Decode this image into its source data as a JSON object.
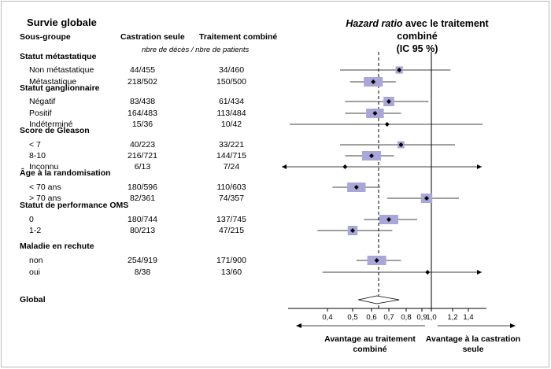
{
  "header": {
    "title": "Survie globale",
    "col_subgroup": "Sous-groupe",
    "col_castration": "Castration seule",
    "col_combined": "Traitement combiné",
    "col_note": "nbre de décès / nbre de patients",
    "hr_title_italic": "Hazard ratio",
    "hr_title_rest": " avec le traitement combiné",
    "hr_title_ci": "(IC 95 %)"
  },
  "chart_data": {
    "type": "forest",
    "reference_line": 1.0,
    "overall_line": 0.63,
    "x_ticks": [
      "0,4",
      "0,5",
      "0,6",
      "0,7",
      "0,8",
      "0,9",
      "1,0",
      "1,2",
      "1,4"
    ],
    "x_tick_values": [
      0.4,
      0.5,
      0.6,
      0.7,
      0.8,
      0.9,
      1.0,
      1.2,
      1.4
    ],
    "groups": [
      {
        "label": "Statut métastatique",
        "rows": [
          {
            "label": "Non métastatique",
            "castration": "44/455",
            "combined": "34/460",
            "hr": 0.76,
            "lo": 0.45,
            "hi": 1.18
          },
          {
            "label": "Métastatique",
            "castration": "218/502",
            "combined": "150/500",
            "hr": 0.61,
            "lo": 0.49,
            "hi": 0.74
          }
        ]
      },
      {
        "label": "Statut ganglionnaire",
        "rows": [
          {
            "label": "Négatif",
            "castration": "83/438",
            "combined": "61/434",
            "hr": 0.7,
            "lo": 0.47,
            "hi": 0.97
          },
          {
            "label": "Positif",
            "castration": "164/483",
            "combined": "113/484",
            "hr": 0.62,
            "lo": 0.47,
            "hi": 0.77
          },
          {
            "label": "Indéterminé",
            "castration": "15/36",
            "combined": "10/42",
            "hr": 0.69,
            "lo": 0.25,
            "hi": 1.58
          }
        ]
      },
      {
        "label": "Score de Gleason",
        "rows": [
          {
            "label": "< 7",
            "castration": "40/223",
            "combined": "33/221",
            "hr": 0.77,
            "lo": 0.45,
            "hi": 1.23
          },
          {
            "label": "8-10",
            "castration": "216/721",
            "combined": "144/715",
            "hr": 0.6,
            "lo": 0.47,
            "hi": 0.73
          },
          {
            "label": "Inconnu",
            "castration": "6/13",
            "combined": "7/24",
            "hr": 0.47,
            "lo": 0.05,
            "hi": 1.6,
            "lo_arrow": true,
            "hi_arrow": true
          }
        ]
      },
      {
        "label": "Âge à la randomisation",
        "rows": [
          {
            "label": "< 70 ans",
            "castration": "180/596",
            "combined": "110/603",
            "hr": 0.52,
            "lo": 0.42,
            "hi": 0.65
          },
          {
            "label": "> 70 ans",
            "castration": "82/361",
            "combined": "74/357",
            "hr": 0.95,
            "lo": 0.69,
            "hi": 1.28
          }
        ]
      },
      {
        "label": "Statut de performance OMS",
        "rows": [
          {
            "label": "0",
            "castration": "180/744",
            "combined": "137/745",
            "hr": 0.7,
            "lo": 0.56,
            "hi": 0.87
          },
          {
            "label": "1-2",
            "castration": "80/213",
            "combined": "47/215",
            "hr": 0.5,
            "lo": 0.36,
            "hi": 0.72
          }
        ]
      },
      {
        "label": "Maladie en rechute",
        "rows": [
          {
            "label": "non",
            "castration": "254/919",
            "combined": "171/900",
            "hr": 0.63,
            "lo": 0.52,
            "hi": 0.77
          },
          {
            "label": "oui",
            "castration": "8/38",
            "combined": "13/60",
            "hr": 0.96,
            "lo": 0.38,
            "hi": 1.6,
            "hi_arrow": true
          }
        ]
      }
    ],
    "overall": {
      "label": "Global",
      "hr": 0.63,
      "lo": 0.53,
      "hi": 0.76
    }
  },
  "footer": {
    "adv_left": "Avantage au traitement combiné",
    "adv_right": "Avantage à la castration seule"
  }
}
